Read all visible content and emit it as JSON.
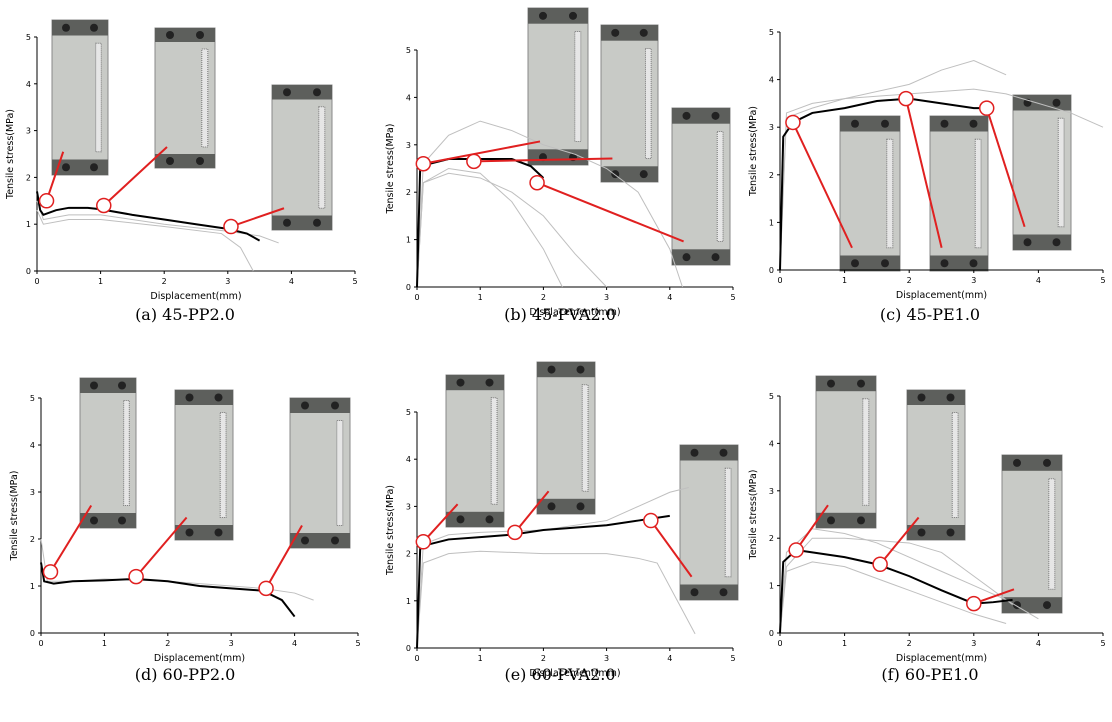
{
  "chart_data": [
    {
      "type": "line",
      "caption": "(a) 45-PP2.0",
      "xlabel": "Displacement(mm)",
      "ylabel": "Tensile stress(MPa)",
      "xlim": [
        0,
        5
      ],
      "ylim": [
        0,
        5
      ],
      "xticks": [
        0,
        1,
        2,
        3,
        4,
        5
      ],
      "yticks": [
        0,
        1,
        2,
        3,
        4,
        5
      ],
      "series": [
        {
          "color": "#bfbfbf",
          "x": [
            0,
            0.1,
            0.5,
            1,
            2,
            3,
            3.5,
            3.8
          ],
          "values": [
            1.5,
            1.1,
            1.2,
            1.2,
            1.0,
            0.85,
            0.75,
            0.6
          ]
        },
        {
          "color": "#bfbfbf",
          "x": [
            0,
            0.1,
            0.5,
            1,
            2,
            2.9,
            3.2,
            3.4
          ],
          "values": [
            1.3,
            1.0,
            1.1,
            1.1,
            0.95,
            0.8,
            0.5,
            0
          ]
        },
        {
          "color": "#000000",
          "x": [
            0,
            0.05,
            0.1,
            0.3,
            0.5,
            0.8,
            1.0,
            1.5,
            2.0,
            2.5,
            3.0,
            3.3,
            3.5
          ],
          "values": [
            1.7,
            1.3,
            1.2,
            1.3,
            1.35,
            1.35,
            1.32,
            1.2,
            1.1,
            1.0,
            0.9,
            0.8,
            0.65
          ]
        }
      ],
      "markers": {
        "color": "#e02020",
        "x": [
          0.15,
          1.05,
          3.05
        ],
        "values": [
          1.5,
          1.4,
          0.95
        ]
      }
    },
    {
      "type": "line",
      "caption": "(b) 45-PVA2.0",
      "xlabel": "Displacement(mm)",
      "ylabel": "Tensile stress(MPa)",
      "xlim": [
        0,
        5
      ],
      "ylim": [
        0,
        5
      ],
      "xticks": [
        0,
        1,
        2,
        3,
        4,
        5
      ],
      "yticks": [
        0,
        1,
        2,
        3,
        4,
        5
      ],
      "series": [
        {
          "color": "#bfbfbf",
          "x": [
            0,
            0.1,
            0.5,
            1,
            1.5,
            2,
            2.5,
            3
          ],
          "values": [
            0,
            2.2,
            2.4,
            2.3,
            2.0,
            1.5,
            0.7,
            0
          ]
        },
        {
          "color": "#bfbfbf",
          "x": [
            0,
            0.1,
            0.5,
            1,
            1.5,
            2,
            2.5,
            3,
            3.5,
            4,
            4.2
          ],
          "values": [
            0,
            2.6,
            3.2,
            3.5,
            3.3,
            3.0,
            2.8,
            2.5,
            2.0,
            0.8,
            0
          ]
        },
        {
          "color": "#bfbfbf",
          "x": [
            0,
            0.1,
            0.5,
            1,
            1.5,
            2,
            2.3
          ],
          "values": [
            0,
            2.2,
            2.5,
            2.4,
            1.8,
            0.8,
            0
          ]
        },
        {
          "color": "#000000",
          "x": [
            0,
            0.05,
            0.2,
            0.5,
            1,
            1.5,
            1.8,
            2.0
          ],
          "values": [
            0,
            2.5,
            2.6,
            2.7,
            2.7,
            2.7,
            2.55,
            2.3
          ]
        }
      ],
      "markers": {
        "color": "#e02020",
        "x": [
          0.1,
          0.9,
          1.9
        ],
        "values": [
          2.6,
          2.65,
          2.2
        ]
      }
    },
    {
      "type": "line",
      "caption": "(c) 45-PE1.0",
      "xlabel": "Displacement(mm)",
      "ylabel": "Tensile stress(MPa)",
      "xlim": [
        0,
        5
      ],
      "ylim": [
        0,
        5
      ],
      "xticks": [
        0,
        1,
        2,
        3,
        4,
        5
      ],
      "yticks": [
        0,
        1,
        2,
        3,
        4,
        5
      ],
      "series": [
        {
          "color": "#bfbfbf",
          "x": [
            0,
            0.1,
            0.5,
            1,
            2,
            3,
            3.5,
            4,
            4.5,
            5
          ],
          "values": [
            0,
            3.2,
            3.4,
            3.6,
            3.7,
            3.8,
            3.7,
            3.5,
            3.3,
            3.0
          ]
        },
        {
          "color": "#bfbfbf",
          "x": [
            0,
            0.1,
            0.5,
            1,
            2,
            2.5,
            3,
            3.5
          ],
          "values": [
            0,
            3.3,
            3.5,
            3.6,
            3.9,
            4.2,
            4.4,
            4.1
          ]
        },
        {
          "color": "#000000",
          "x": [
            0,
            0.05,
            0.2,
            0.5,
            1,
            1.5,
            2,
            2.5,
            3,
            3.2
          ],
          "values": [
            0,
            2.8,
            3.1,
            3.3,
            3.4,
            3.55,
            3.6,
            3.5,
            3.4,
            3.4
          ]
        }
      ],
      "markers": {
        "color": "#e02020",
        "x": [
          0.2,
          1.95,
          3.2
        ],
        "values": [
          3.1,
          3.6,
          3.4
        ]
      }
    },
    {
      "type": "line",
      "caption": "(d) 60-PP2.0",
      "xlabel": "Displacement(mm)",
      "ylabel": "Tensile stress(MPa)",
      "xlim": [
        0,
        5
      ],
      "ylim": [
        0,
        5
      ],
      "xticks": [
        0,
        1,
        2,
        3,
        4,
        5
      ],
      "yticks": [
        0,
        1,
        2,
        3,
        4,
        5
      ],
      "series": [
        {
          "color": "#bfbfbf",
          "x": [
            0,
            0.1,
            0.5,
            1,
            2,
            3,
            3.5,
            4,
            4.3
          ],
          "values": [
            2.0,
            1.1,
            1.1,
            1.15,
            1.1,
            1.0,
            0.95,
            0.85,
            0.7
          ]
        },
        {
          "color": "#000000",
          "x": [
            0,
            0.05,
            0.2,
            0.5,
            1,
            1.5,
            2,
            2.5,
            3,
            3.5,
            3.8,
            4.0
          ],
          "values": [
            1.5,
            1.1,
            1.05,
            1.1,
            1.12,
            1.15,
            1.1,
            1.0,
            0.95,
            0.9,
            0.7,
            0.35
          ]
        }
      ],
      "markers": {
        "color": "#e02020",
        "x": [
          0.15,
          1.5,
          3.55
        ],
        "values": [
          1.3,
          1.2,
          0.95
        ]
      }
    },
    {
      "type": "line",
      "caption": "(e) 60-PVA2.0",
      "xlabel": "Displacement(mm)",
      "ylabel": "Tensile stress(MPa)",
      "xlim": [
        0,
        5
      ],
      "ylim": [
        0,
        5
      ],
      "xticks": [
        0,
        1,
        2,
        3,
        4,
        5
      ],
      "yticks": [
        0,
        1,
        2,
        3,
        4,
        5
      ],
      "series": [
        {
          "color": "#bfbfbf",
          "x": [
            0,
            0.1,
            0.5,
            1,
            2,
            3,
            3.5,
            3.8,
            4.2,
            4.4
          ],
          "values": [
            0,
            1.8,
            2.0,
            2.05,
            2.0,
            2.0,
            1.9,
            1.8,
            0.8,
            0.3
          ]
        },
        {
          "color": "#bfbfbf",
          "x": [
            0,
            0.1,
            0.5,
            1,
            2,
            3,
            3.5,
            4,
            4.3
          ],
          "values": [
            0,
            2.2,
            2.4,
            2.45,
            2.5,
            2.7,
            3.0,
            3.3,
            3.4
          ]
        },
        {
          "color": "#000000",
          "x": [
            0,
            0.05,
            0.2,
            0.5,
            1,
            1.5,
            2,
            2.5,
            3,
            3.5,
            4.0
          ],
          "values": [
            0,
            2.1,
            2.2,
            2.3,
            2.35,
            2.4,
            2.5,
            2.55,
            2.6,
            2.7,
            2.8
          ]
        }
      ],
      "markers": {
        "color": "#e02020",
        "x": [
          0.1,
          1.55,
          3.7
        ],
        "values": [
          2.25,
          2.45,
          2.7
        ]
      }
    },
    {
      "type": "line",
      "caption": "(f) 60-PE1.0",
      "xlabel": "Displacement(mm)",
      "ylabel": "Tensile stress(MPa)",
      "xlim": [
        0,
        5
      ],
      "ylim": [
        0,
        5
      ],
      "xticks": [
        0,
        1,
        2,
        3,
        4,
        5
      ],
      "yticks": [
        0,
        1,
        2,
        3,
        4,
        5
      ],
      "series": [
        {
          "color": "#bfbfbf",
          "x": [
            0,
            0.1,
            0.5,
            1,
            1.5,
            2,
            2.5,
            3,
            3.5,
            4
          ],
          "values": [
            0,
            1.7,
            2.2,
            2.1,
            1.9,
            1.6,
            1.3,
            1.0,
            0.7,
            0.3
          ]
        },
        {
          "color": "#bfbfbf",
          "x": [
            0,
            0.1,
            0.5,
            1,
            2,
            3,
            3.5
          ],
          "values": [
            0,
            1.3,
            1.5,
            1.4,
            0.9,
            0.4,
            0.2
          ]
        },
        {
          "color": "#bfbfbf",
          "x": [
            0,
            0.1,
            0.5,
            1,
            2,
            2.5,
            3,
            3.6
          ],
          "values": [
            0,
            1.4,
            2.0,
            2.0,
            1.9,
            1.7,
            1.2,
            0.6
          ]
        },
        {
          "color": "#000000",
          "x": [
            0,
            0.05,
            0.25,
            0.5,
            1,
            1.5,
            2,
            2.5,
            3,
            3.3,
            3.6
          ],
          "values": [
            0,
            1.5,
            1.75,
            1.7,
            1.6,
            1.45,
            1.2,
            0.9,
            0.62,
            0.65,
            0.7
          ]
        }
      ],
      "markers": {
        "color": "#e02020",
        "x": [
          0.25,
          1.55,
          3.0
        ],
        "values": [
          1.75,
          1.45,
          0.62
        ]
      }
    }
  ]
}
